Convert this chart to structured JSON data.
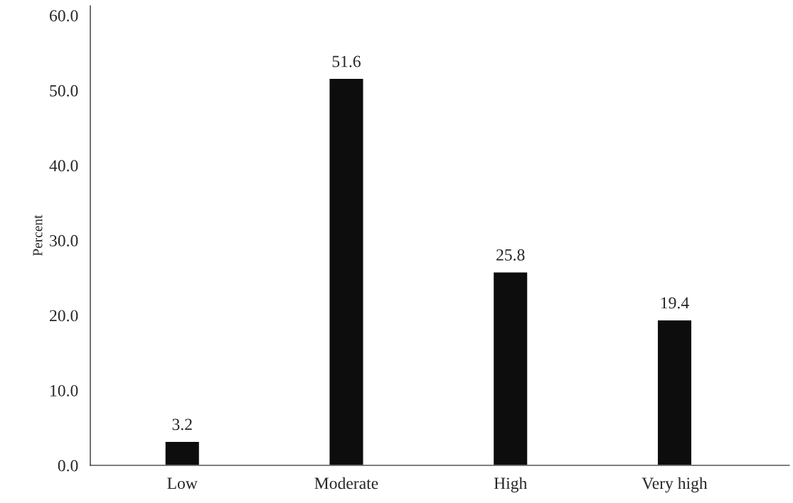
{
  "chart_data": {
    "type": "bar",
    "ylabel": "Percent",
    "categories": [
      "Low",
      "Moderate",
      "High",
      "Very high"
    ],
    "values": [
      3.2,
      51.6,
      25.8,
      19.4
    ],
    "color": "#0d0d0d",
    "ylim": [
      0,
      61.3
    ],
    "yticks": [
      {
        "value": 0,
        "label": "0.0"
      },
      {
        "value": 10,
        "label": "10.0"
      },
      {
        "value": 20,
        "label": "20.0"
      },
      {
        "value": 30,
        "label": "30.0"
      },
      {
        "value": 40,
        "label": "40.0"
      },
      {
        "value": 50,
        "label": "50.0"
      },
      {
        "value": 60,
        "label": "60.0"
      }
    ],
    "data_labels": true,
    "grid": false,
    "legend": false
  }
}
